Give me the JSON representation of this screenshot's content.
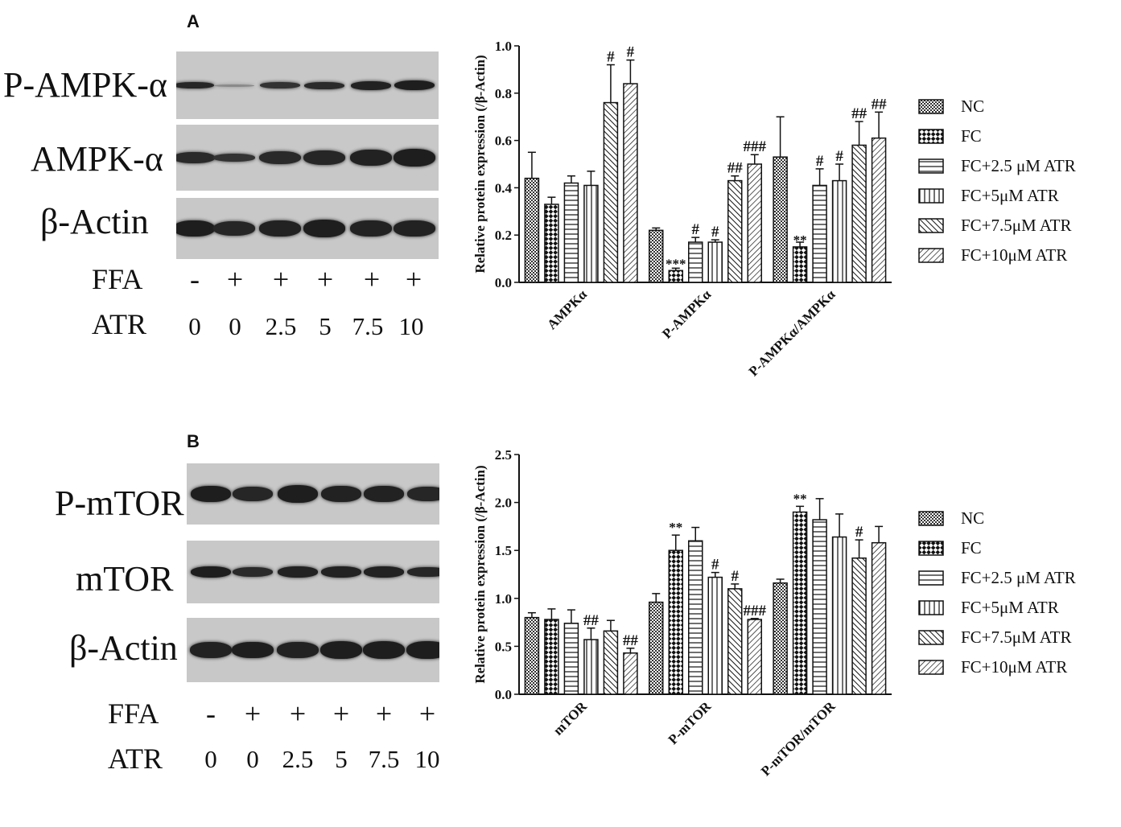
{
  "panel_a": {
    "letter": "A",
    "blot": {
      "rows": [
        "P-AMPK-α",
        "AMPK-α",
        "β-Actin"
      ],
      "treatment_rows": [
        {
          "label": "FFA",
          "values": [
            "-",
            "+",
            "+",
            "+",
            "+",
            "+"
          ]
        },
        {
          "label": "ATR",
          "values": [
            "0",
            "0",
            "2.5",
            "5",
            "7.5",
            "10"
          ]
        }
      ]
    }
  },
  "panel_b": {
    "letter": "B",
    "blot": {
      "rows": [
        "P-mTOR",
        "mTOR",
        "β-Actin"
      ],
      "treatment_rows": [
        {
          "label": "FFA",
          "values": [
            "-",
            "+",
            "+",
            "+",
            "+",
            "+"
          ]
        },
        {
          "label": "ATR",
          "values": [
            "0",
            "0",
            "2.5",
            "5",
            "7.5",
            "10"
          ]
        }
      ]
    }
  },
  "chart_data": [
    {
      "type": "bar",
      "panel": "A",
      "ylabel": "Relative protein expression (/β-Actin)",
      "ylim": [
        0,
        1.0
      ],
      "yticks": [
        "0.0",
        "0.2",
        "0.4",
        "0.6",
        "0.8",
        "1.0"
      ],
      "categories": [
        "AMPKα",
        "P-AMPKα",
        "P-AMPKα/AMPKα"
      ],
      "legend_position": "right",
      "series": [
        {
          "name": "NC",
          "pattern": "checker",
          "values": [
            0.44,
            0.22,
            0.53
          ],
          "errors": [
            0.11,
            0.01,
            0.17
          ],
          "annotations": [
            "",
            "",
            ""
          ]
        },
        {
          "name": "FC",
          "pattern": "bigcheck",
          "values": [
            0.33,
            0.05,
            0.15
          ],
          "errors": [
            0.03,
            0.01,
            0.02
          ],
          "annotations": [
            "",
            "***",
            "**"
          ]
        },
        {
          "name": "FC+2.5 μM ATR",
          "pattern": "hlines",
          "values": [
            0.42,
            0.17,
            0.41
          ],
          "errors": [
            0.03,
            0.02,
            0.07
          ],
          "annotations": [
            "",
            "#",
            "#"
          ]
        },
        {
          "name": "FC+5μM ATR",
          "pattern": "vlines",
          "values": [
            0.41,
            0.17,
            0.43
          ],
          "errors": [
            0.06,
            0.01,
            0.07
          ],
          "annotations": [
            "",
            "#",
            "#"
          ]
        },
        {
          "name": "FC+7.5μM ATR",
          "pattern": "diag",
          "values": [
            0.76,
            0.43,
            0.58
          ],
          "errors": [
            0.16,
            0.02,
            0.1
          ],
          "annotations": [
            "#",
            "##",
            "##"
          ]
        },
        {
          "name": "FC+10μM ATR",
          "pattern": "backdiag",
          "values": [
            0.84,
            0.5,
            0.61
          ],
          "errors": [
            0.1,
            0.04,
            0.11
          ],
          "annotations": [
            "#",
            "###",
            "##"
          ]
        }
      ]
    },
    {
      "type": "bar",
      "panel": "B",
      "ylabel": "Relative protein expression (/β-Actin)",
      "ylim": [
        0,
        2.5
      ],
      "yticks": [
        "0.0",
        "0.5",
        "1.0",
        "1.5",
        "2.0",
        "2.5"
      ],
      "categories": [
        "mTOR",
        "P-mTOR",
        "P-mTOR/mTOR"
      ],
      "legend_position": "right",
      "series": [
        {
          "name": "NC",
          "pattern": "checker",
          "values": [
            0.8,
            0.96,
            1.16
          ],
          "errors": [
            0.05,
            0.09,
            0.04
          ],
          "annotations": [
            "",
            "",
            ""
          ]
        },
        {
          "name": "FC",
          "pattern": "bigcheck",
          "values": [
            0.78,
            1.5,
            1.9
          ],
          "errors": [
            0.11,
            0.16,
            0.06
          ],
          "annotations": [
            "",
            "**",
            "**"
          ]
        },
        {
          "name": "FC+2.5 μM ATR",
          "pattern": "hlines",
          "values": [
            0.74,
            1.6,
            1.82
          ],
          "errors": [
            0.14,
            0.14,
            0.22
          ],
          "annotations": [
            "",
            "",
            ""
          ]
        },
        {
          "name": "FC+5μM ATR",
          "pattern": "vlines",
          "values": [
            0.57,
            1.22,
            1.64
          ],
          "errors": [
            0.12,
            0.05,
            0.24
          ],
          "annotations": [
            "##",
            "#",
            ""
          ]
        },
        {
          "name": "FC+7.5μM ATR",
          "pattern": "diag",
          "values": [
            0.66,
            1.1,
            1.42
          ],
          "errors": [
            0.11,
            0.05,
            0.19
          ],
          "annotations": [
            "",
            "#",
            "#"
          ]
        },
        {
          "name": "FC+10μM ATR",
          "pattern": "backdiag",
          "values": [
            0.43,
            0.78,
            1.58
          ],
          "errors": [
            0.05,
            0.01,
            0.17
          ],
          "annotations": [
            "##",
            "###",
            ""
          ]
        }
      ]
    }
  ]
}
